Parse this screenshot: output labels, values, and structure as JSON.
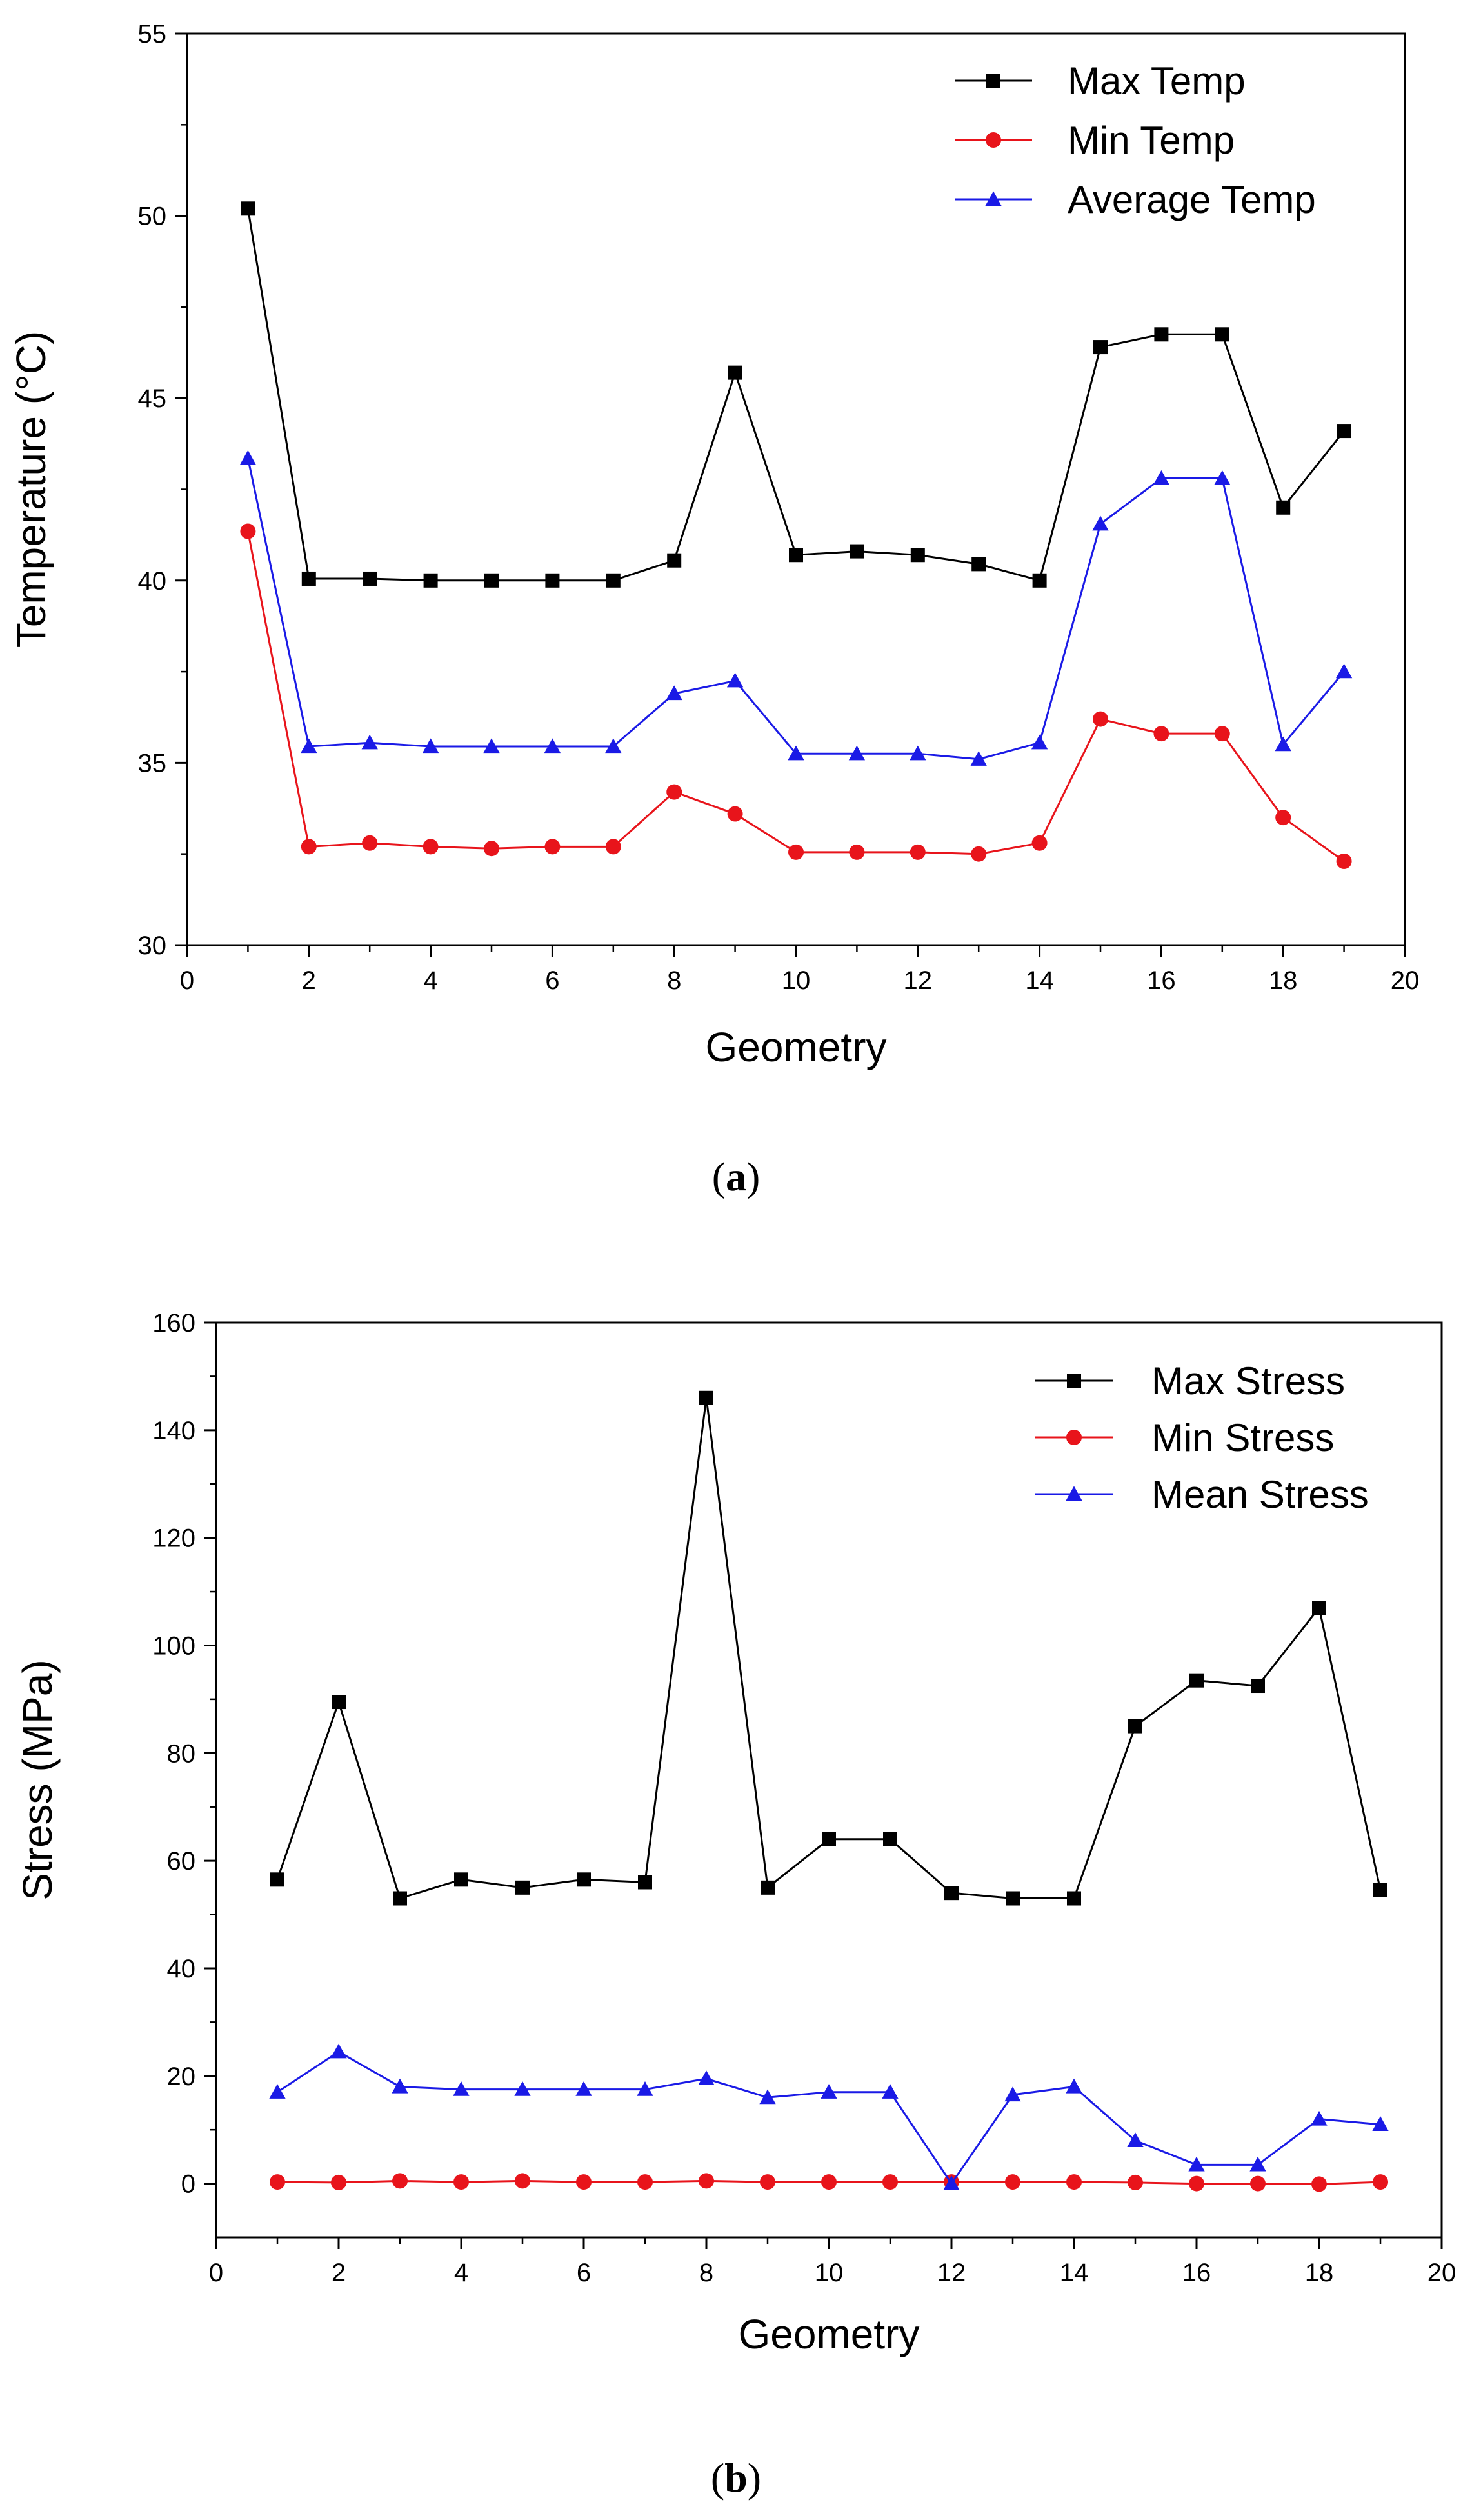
{
  "chart_data": [
    {
      "type": "line",
      "panel_label": "a",
      "xlabel": "Geometry",
      "ylabel": "Temperature (°C)",
      "xlim": [
        0,
        20
      ],
      "ylim": [
        30,
        55
      ],
      "xticks": [
        0,
        2,
        4,
        6,
        8,
        10,
        12,
        14,
        16,
        18,
        20
      ],
      "yticks": [
        30,
        35,
        40,
        45,
        50,
        55
      ],
      "legend_position": "top-right",
      "x": [
        1,
        2,
        3,
        4,
        5,
        6,
        7,
        8,
        9,
        10,
        11,
        12,
        13,
        14,
        15,
        16,
        17,
        18,
        19
      ],
      "series": [
        {
          "name": "Max Temp",
          "color": "#000000",
          "marker": "square",
          "values": [
            50.2,
            40.05,
            40.05,
            40.0,
            40.0,
            40.0,
            40.0,
            40.55,
            45.7,
            40.7,
            40.8,
            40.7,
            40.45,
            40.0,
            46.4,
            46.75,
            46.75,
            42.0,
            44.1
          ]
        },
        {
          "name": "Min Temp",
          "color": "#e8141b",
          "marker": "circle",
          "values": [
            41.35,
            32.7,
            32.8,
            32.7,
            32.65,
            32.7,
            32.7,
            34.2,
            33.6,
            32.55,
            32.55,
            32.55,
            32.5,
            32.8,
            36.2,
            35.8,
            35.8,
            33.5,
            32.3
          ]
        },
        {
          "name": "Average Temp",
          "color": "#1a1ae6",
          "marker": "triangle",
          "values": [
            43.35,
            35.45,
            35.55,
            35.45,
            35.45,
            35.45,
            35.45,
            36.9,
            37.25,
            35.25,
            35.25,
            35.25,
            35.1,
            35.55,
            41.55,
            42.8,
            42.8,
            35.5,
            37.5
          ]
        }
      ]
    },
    {
      "type": "line",
      "panel_label": "b",
      "xlabel": "Geometry",
      "ylabel": "Stress (MPa)",
      "xlim": [
        0,
        20
      ],
      "ylim": [
        -10,
        160
      ],
      "xticks": [
        0,
        2,
        4,
        6,
        8,
        10,
        12,
        14,
        16,
        18,
        20
      ],
      "yticks": [
        0,
        20,
        40,
        60,
        80,
        100,
        120,
        140,
        160
      ],
      "legend_position": "top-right",
      "x": [
        1,
        2,
        3,
        4,
        5,
        6,
        7,
        8,
        9,
        10,
        11,
        12,
        13,
        14,
        15,
        16,
        17,
        18,
        19
      ],
      "series": [
        {
          "name": "Max Stress",
          "color": "#000000",
          "marker": "square",
          "values": [
            56.5,
            89.5,
            53.0,
            56.5,
            55.0,
            56.5,
            56.0,
            146.0,
            55.0,
            64.0,
            64.0,
            54.0,
            53.0,
            53.0,
            85.0,
            93.5,
            92.5,
            107.0,
            54.5
          ]
        },
        {
          "name": "Min Stress",
          "color": "#e8141b",
          "marker": "circle",
          "values": [
            0.3,
            0.2,
            0.5,
            0.3,
            0.5,
            0.3,
            0.3,
            0.5,
            0.3,
            0.3,
            0.3,
            0.3,
            0.3,
            0.3,
            0.2,
            0.0,
            0.0,
            -0.1,
            0.3
          ]
        },
        {
          "name": "Mean Stress",
          "color": "#1a1ae6",
          "marker": "triangle",
          "values": [
            17.0,
            24.5,
            18.0,
            17.5,
            17.5,
            17.5,
            17.5,
            19.5,
            16.0,
            17.0,
            17.0,
            0.0,
            16.5,
            18.0,
            8.0,
            3.5,
            3.5,
            12.0,
            11.0
          ]
        }
      ]
    }
  ]
}
